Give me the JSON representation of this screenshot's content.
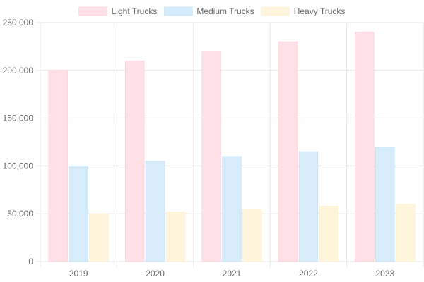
{
  "chart_data": {
    "type": "bar",
    "categories": [
      "2019",
      "2020",
      "2021",
      "2022",
      "2023"
    ],
    "series": [
      {
        "name": "Light Trucks",
        "values": [
          200000,
          210000,
          220000,
          230000,
          240000
        ],
        "fill": "#ffe0e6",
        "stroke": "#ffb1c1"
      },
      {
        "name": "Medium Trucks",
        "values": [
          100000,
          105000,
          110000,
          115000,
          120000
        ],
        "fill": "#d7ecfb",
        "stroke": "#9ad0f5"
      },
      {
        "name": "Heavy Trucks",
        "values": [
          50000,
          52000,
          55000,
          58000,
          60000
        ],
        "fill": "#fff5dd",
        "stroke": "#ffe6aa"
      }
    ],
    "y_ticks": [
      "0",
      "50,000",
      "100,000",
      "150,000",
      "200,000",
      "250,000"
    ],
    "ylim": [
      0,
      250000
    ],
    "grid": true,
    "legend_position": "top-center",
    "colors": {
      "grid": "#e5e5e5",
      "axis_text": "#666666"
    }
  }
}
